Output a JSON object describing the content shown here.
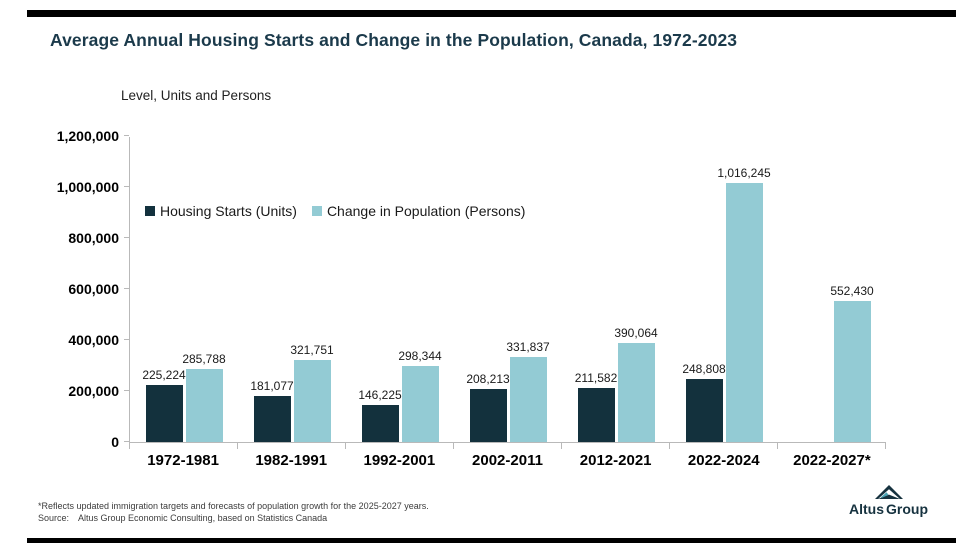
{
  "header": {
    "title": "Average Annual Housing Starts and Change in the Population, Canada, 1972-2023"
  },
  "chart": {
    "axis_title": "Level, Units and Persons"
  },
  "chart_data": {
    "type": "bar",
    "title": "Average Annual Housing Starts and Change in the Population, Canada, 1972-2023",
    "ylabel": "Level, Units and Persons",
    "xlabel": "",
    "categories": [
      "1972-1981",
      "1982-1991",
      "1992-2001",
      "2002-2011",
      "2012-2021",
      "2022-2024",
      "2022-2027*"
    ],
    "series": [
      {
        "name": "Housing Starts (Units)",
        "color": "#13313d",
        "values": [
          225224,
          181077,
          146225,
          208213,
          211582,
          248808,
          null
        ]
      },
      {
        "name": "Change in Population (Persons)",
        "color": "#93cbd4",
        "values": [
          285788,
          321751,
          298344,
          331837,
          390064,
          1016245,
          552430
        ]
      }
    ],
    "ylim": [
      0,
      1200000
    ],
    "ytick_step": 200000,
    "grid": false,
    "legend_position": "inside-top-left",
    "value_labels": true
  },
  "footer": {
    "footnote": "*Reflects updated immigration targets and forecasts of population growth for the 2025-2027 years.",
    "source_label": "Source:",
    "source_text": "Altus Group Economic Consulting, based on Statistics Canada",
    "logo_altus": "Altus",
    "logo_group": "Group"
  },
  "colors": {
    "accent_bar": "#000000",
    "title_text": "#1b3a4b",
    "axis_line": "#b9b9b9",
    "housing_starts_bar": "#13313d",
    "population_bar": "#93cbd4",
    "logo_navy": "#16323f",
    "logo_teal": "#4aa3b5"
  }
}
